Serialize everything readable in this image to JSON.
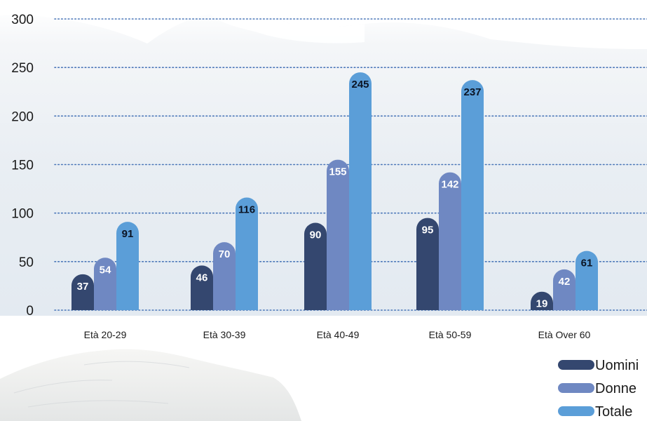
{
  "chart_data": {
    "type": "bar",
    "title": "",
    "xlabel": "",
    "ylabel": "",
    "ylim": [
      0,
      300
    ],
    "yticks": [
      0,
      50,
      100,
      150,
      200,
      250,
      300
    ],
    "grid": true,
    "legend_position": "bottom-right",
    "categories": [
      "Età 20-29",
      "Età 30-39",
      "Età 40-49",
      "Età 50-59",
      "Età Over 60"
    ],
    "series": [
      {
        "name": "Uomini",
        "color": "#34476f",
        "label_color": "#ffffff",
        "values": [
          37,
          46,
          90,
          95,
          19
        ]
      },
      {
        "name": "Donne",
        "color": "#6f88c2",
        "label_color": "#ffffff",
        "values": [
          54,
          70,
          155,
          142,
          42
        ]
      },
      {
        "name": "Totale",
        "color": "#5b9ed8",
        "label_color": "#0b1424",
        "values": [
          91,
          116,
          245,
          237,
          61
        ]
      }
    ]
  }
}
